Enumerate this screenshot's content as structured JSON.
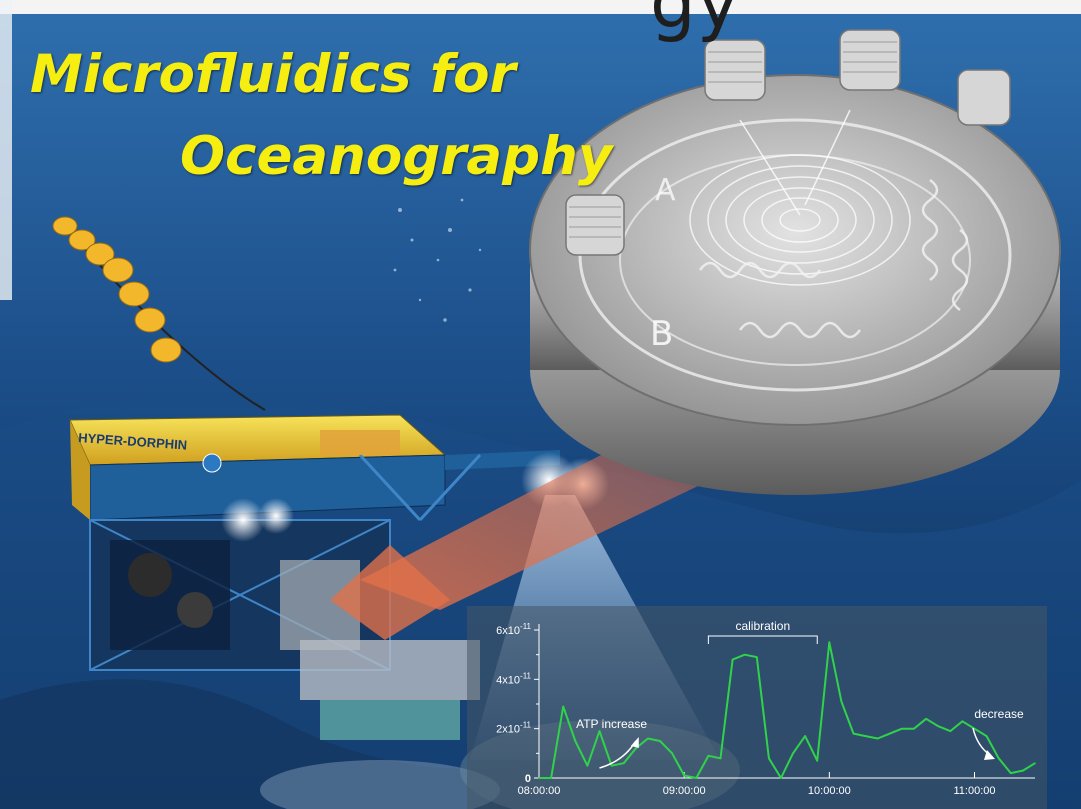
{
  "title": {
    "line1": "Microfluidics for",
    "line2": "Oceanography",
    "cut_off_text": "gy"
  },
  "rov": {
    "label": "HYPER-DORPHIN"
  },
  "chip": {
    "letters": [
      "A",
      "B"
    ]
  },
  "chart_data": {
    "type": "line",
    "x": [
      "08:00:00",
      "08:05:00",
      "08:10:00",
      "08:15:00",
      "08:20:00",
      "08:25:00",
      "08:30:00",
      "08:35:00",
      "08:40:00",
      "08:45:00",
      "08:50:00",
      "08:55:00",
      "09:00:00",
      "09:05:00",
      "09:10:00",
      "09:15:00",
      "09:20:00",
      "09:25:00",
      "09:30:00",
      "09:35:00",
      "09:40:00",
      "09:45:00",
      "09:50:00",
      "09:55:00",
      "10:00:00",
      "10:05:00",
      "10:10:00",
      "10:15:00",
      "10:20:00",
      "10:25:00",
      "10:30:00",
      "10:35:00",
      "10:40:00",
      "10:45:00",
      "10:50:00",
      "10:55:00",
      "11:00:00",
      "11:05:00",
      "11:10:00",
      "11:15:00",
      "11:20:00",
      "11:25:00"
    ],
    "series": [
      {
        "values": [
          0.0,
          0.0,
          2.9,
          1.5,
          0.5,
          1.9,
          0.5,
          0.6,
          1.2,
          1.6,
          1.5,
          1.0,
          0.1,
          0.0,
          0.9,
          0.8,
          4.8,
          5.0,
          4.9,
          0.8,
          0.0,
          1.0,
          1.7,
          0.7,
          5.5,
          3.1,
          1.8,
          1.7,
          1.6,
          1.8,
          2.0,
          2.0,
          2.4,
          2.1,
          1.9,
          2.3,
          2.0,
          1.7,
          0.8,
          0.2,
          0.3,
          0.6
        ]
      }
    ],
    "ytick_labels": [
      "0",
      "2x10",
      "4x10",
      "6x10"
    ],
    "ytick_exponent": "-11",
    "xtick_labels": [
      "08:00:00",
      "09:00:00",
      "10:00:00",
      "11:00:00"
    ],
    "ylim": [
      0,
      6
    ],
    "annotations": {
      "calibration": "calibration",
      "atp_increase": "ATP increase",
      "decrease": "decrease"
    },
    "line_color": "#2fd34a",
    "grid": false
  },
  "colors": {
    "title": "#f5ee10",
    "ocean_dark": "#0b2a52",
    "ocean_light": "#2f78b8"
  }
}
